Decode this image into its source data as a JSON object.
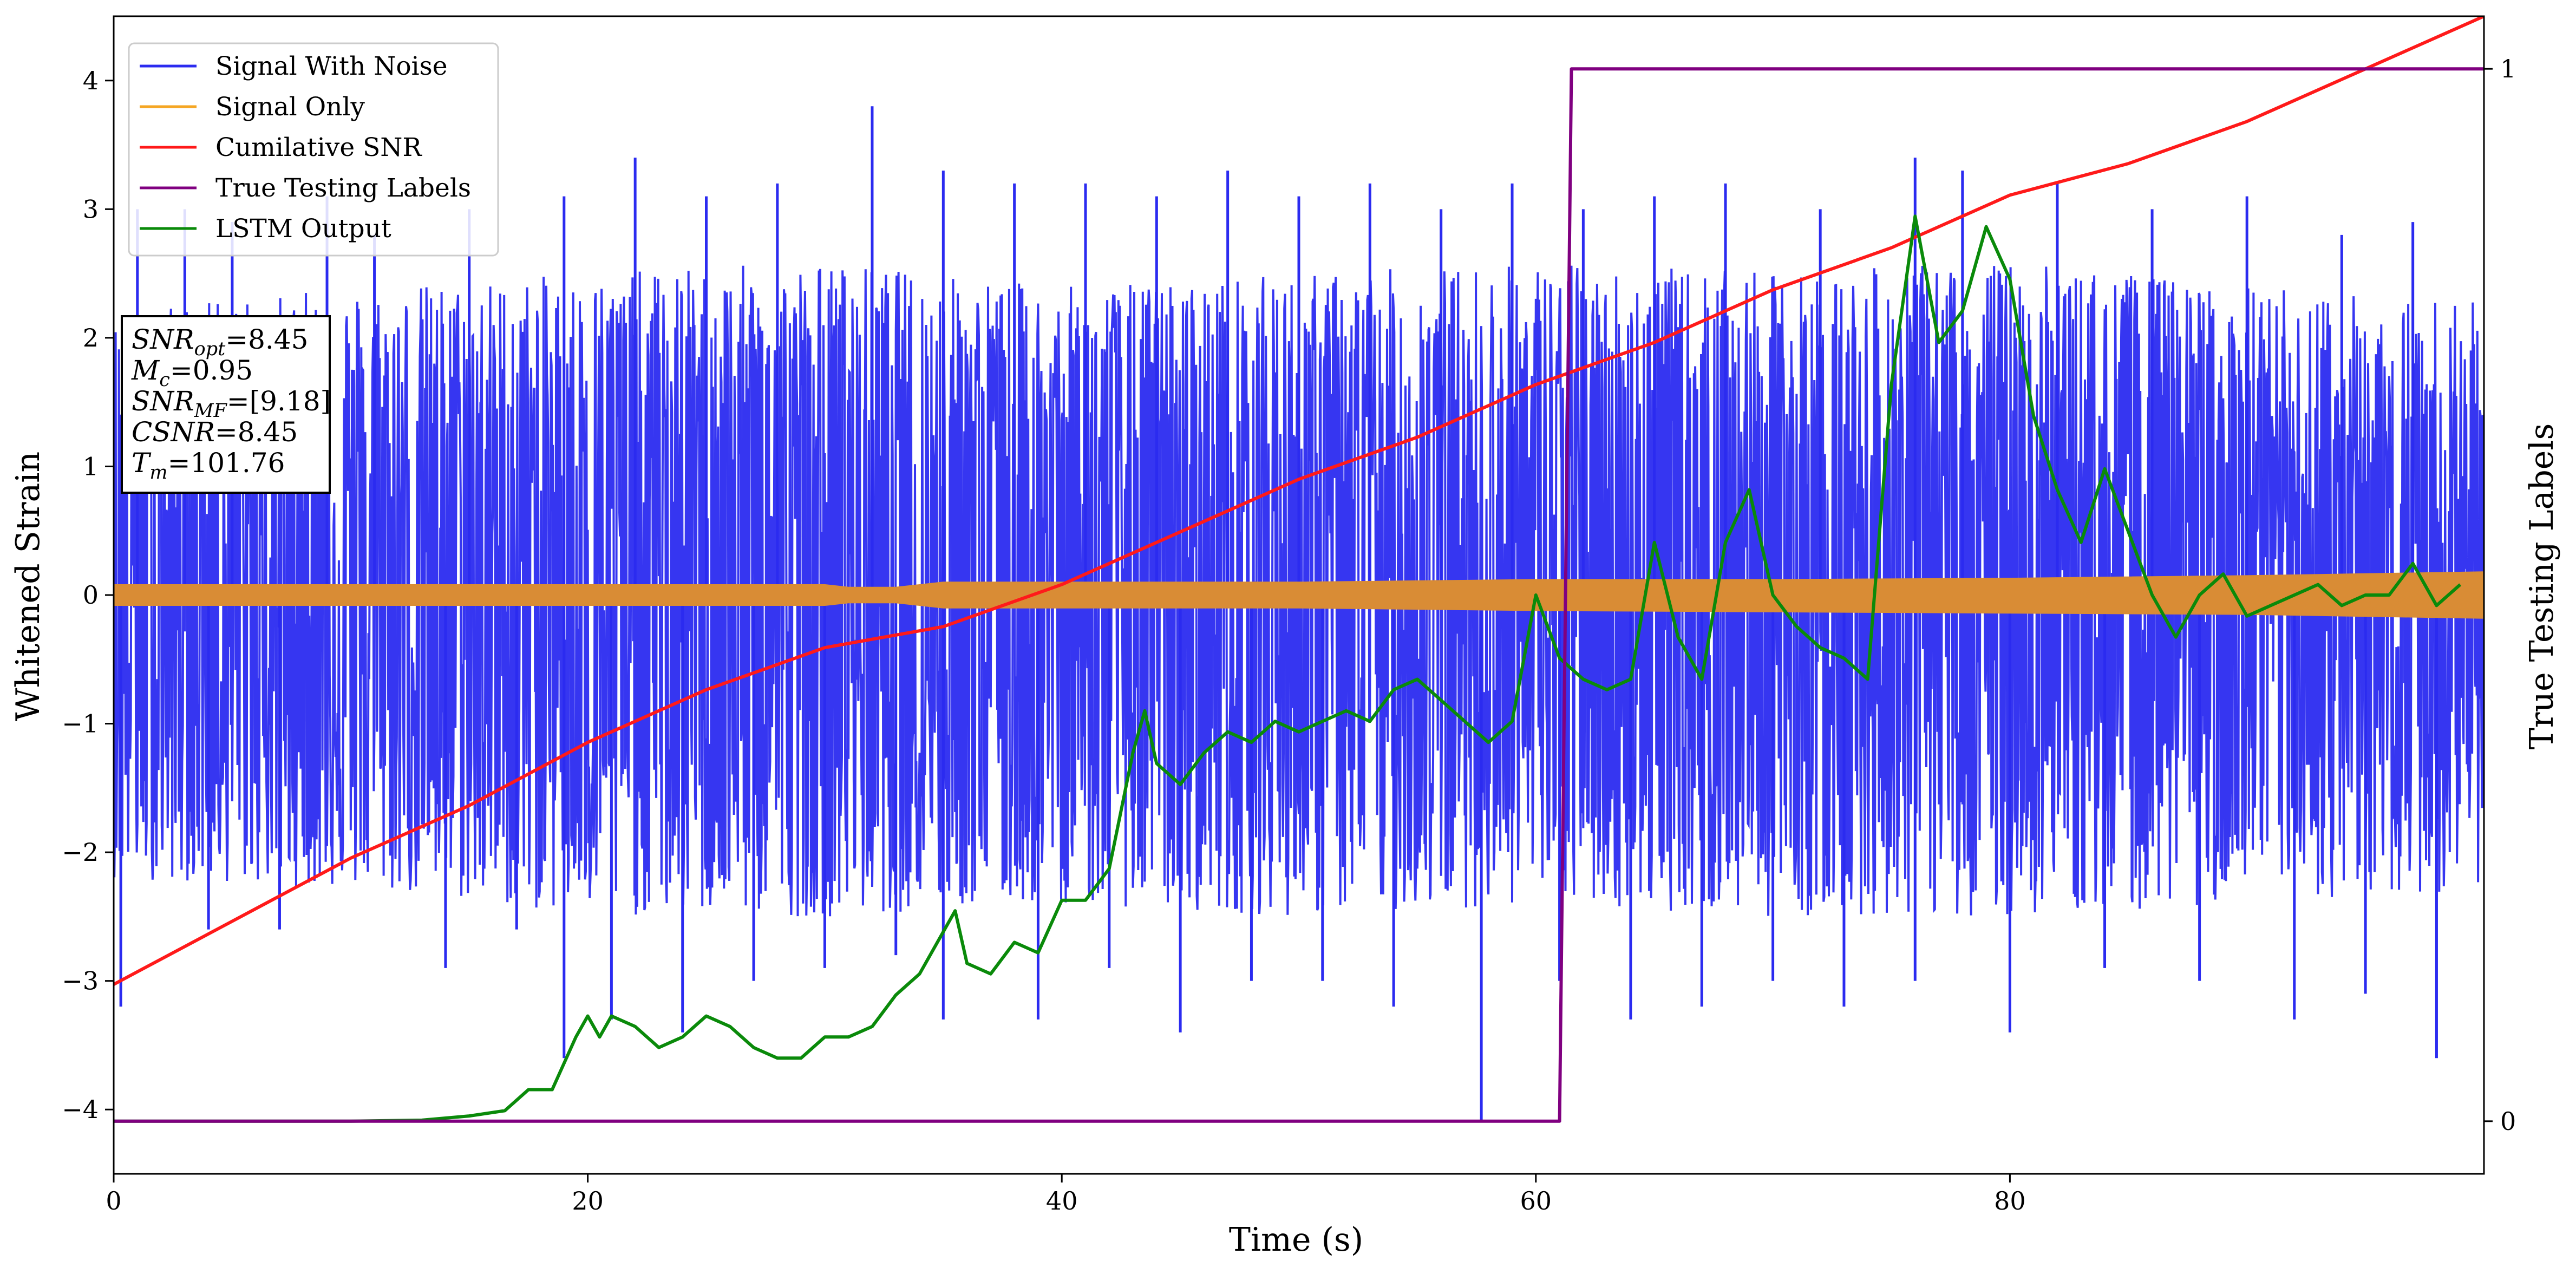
{
  "chart_data": {
    "type": "line",
    "xlabel": "Time (s)",
    "ylabel": "Whitened Strain",
    "y2label": "True Testing Labels",
    "xlim": [
      0,
      100
    ],
    "ylim": [
      -4.5,
      4.5
    ],
    "y2lim": [
      -0.05,
      1.05
    ],
    "xticks": [
      0,
      20,
      40,
      60,
      80
    ],
    "yticks": [
      -4,
      -3,
      -2,
      -1,
      0,
      1,
      2,
      3,
      4
    ],
    "y2ticks": [
      0,
      1
    ],
    "grid": false,
    "legend_position": "top-left",
    "legend": [
      {
        "name": "Signal With Noise",
        "color": "#2b2bf0"
      },
      {
        "name": "Signal Only",
        "color": "#f5a623"
      },
      {
        "name": "Cumilative SNR",
        "color": "#ff1a1a"
      },
      {
        "name": "True Testing Labels",
        "color": "#800080"
      },
      {
        "name": "LSTM Output",
        "color": "#0a8a0a"
      }
    ],
    "annotation": [
      {
        "base": "SNR",
        "sub": "opt",
        "rest": "=8.45"
      },
      {
        "base": "M",
        "sub": "c",
        "rest": "=0.95"
      },
      {
        "base": "SNR",
        "sub": "MF",
        "rest": "=[9.18]"
      },
      {
        "base": "CSNR",
        "sub": "",
        "rest": "=8.45"
      },
      {
        "base": "T",
        "sub": "m",
        "rest": "=101.76"
      }
    ],
    "series": [
      {
        "name": "Signal With Noise",
        "axis": "left",
        "style": "noise-band",
        "x": [
          0,
          10,
          20,
          30,
          40,
          50,
          60,
          70,
          80,
          90,
          100
        ],
        "upper_envelope": [
          2.2,
          2.4,
          2.5,
          2.6,
          2.4,
          2.5,
          2.6,
          2.5,
          2.6,
          2.4,
          2.3
        ],
        "lower_envelope": [
          -2.2,
          -2.3,
          -2.5,
          -2.5,
          -2.4,
          -2.5,
          -2.4,
          -2.5,
          -2.5,
          -2.4,
          -2.3
        ],
        "spikes": [
          {
            "x": 1,
            "y": 3.0
          },
          {
            "x": 3,
            "y": 3.0
          },
          {
            "x": 5,
            "y": 2.9
          },
          {
            "x": 9,
            "y": 3.1
          },
          {
            "x": 11,
            "y": 2.8
          },
          {
            "x": 15,
            "y": 3.0
          },
          {
            "x": 19,
            "y": 3.1
          },
          {
            "x": 22,
            "y": 3.4
          },
          {
            "x": 25,
            "y": 3.1
          },
          {
            "x": 28,
            "y": 3.2
          },
          {
            "x": 32,
            "y": 3.8
          },
          {
            "x": 35,
            "y": 3.3
          },
          {
            "x": 38,
            "y": 3.2
          },
          {
            "x": 41,
            "y": 3.2
          },
          {
            "x": 44,
            "y": 3.1
          },
          {
            "x": 47,
            "y": 3.3
          },
          {
            "x": 50,
            "y": 3.1
          },
          {
            "x": 53,
            "y": 3.2
          },
          {
            "x": 56,
            "y": 3.0
          },
          {
            "x": 59,
            "y": 3.2
          },
          {
            "x": 62,
            "y": 3.0
          },
          {
            "x": 65,
            "y": 3.1
          },
          {
            "x": 68,
            "y": 3.2
          },
          {
            "x": 72,
            "y": 3.0
          },
          {
            "x": 76,
            "y": 3.4
          },
          {
            "x": 78,
            "y": 3.3
          },
          {
            "x": 82,
            "y": 3.2
          },
          {
            "x": 86,
            "y": 3.0
          },
          {
            "x": 90,
            "y": 3.1
          },
          {
            "x": 94,
            "y": 2.8
          },
          {
            "x": 97,
            "y": 2.9
          },
          {
            "x": 0.3,
            "y": -3.2
          },
          {
            "x": 4,
            "y": -2.6
          },
          {
            "x": 7,
            "y": -2.6
          },
          {
            "x": 14,
            "y": -2.9
          },
          {
            "x": 17,
            "y": -2.6
          },
          {
            "x": 19,
            "y": -3.6
          },
          {
            "x": 21,
            "y": -3.3
          },
          {
            "x": 24,
            "y": -3.4
          },
          {
            "x": 27,
            "y": -3.0
          },
          {
            "x": 30,
            "y": -2.9
          },
          {
            "x": 33,
            "y": -2.8
          },
          {
            "x": 35,
            "y": -3.3
          },
          {
            "x": 39,
            "y": -3.3
          },
          {
            "x": 42,
            "y": -2.9
          },
          {
            "x": 45,
            "y": -3.4
          },
          {
            "x": 48,
            "y": -3.0
          },
          {
            "x": 51,
            "y": -3.0
          },
          {
            "x": 54,
            "y": -3.2
          },
          {
            "x": 57.7,
            "y": -4.1
          },
          {
            "x": 61,
            "y": -3.0
          },
          {
            "x": 64,
            "y": -3.3
          },
          {
            "x": 67,
            "y": -3.2
          },
          {
            "x": 70,
            "y": -3.0
          },
          {
            "x": 73,
            "y": -3.2
          },
          {
            "x": 76,
            "y": -3.0
          },
          {
            "x": 80,
            "y": -3.4
          },
          {
            "x": 84,
            "y": -2.9
          },
          {
            "x": 88,
            "y": -3.0
          },
          {
            "x": 92,
            "y": -3.3
          },
          {
            "x": 95,
            "y": -3.1
          },
          {
            "x": 98,
            "y": -3.6
          }
        ]
      },
      {
        "name": "Signal Only",
        "axis": "left",
        "style": "envelope-band",
        "x": [
          0,
          10,
          20,
          30,
          31,
          33,
          35,
          40,
          50,
          60,
          70,
          80,
          90,
          100
        ],
        "upper": [
          0.08,
          0.08,
          0.08,
          0.08,
          0.06,
          0.06,
          0.1,
          0.1,
          0.1,
          0.12,
          0.12,
          0.13,
          0.15,
          0.18
        ],
        "lower": [
          -0.08,
          -0.08,
          -0.08,
          -0.08,
          -0.06,
          -0.06,
          -0.1,
          -0.1,
          -0.1,
          -0.12,
          -0.13,
          -0.14,
          -0.15,
          -0.18
        ]
      },
      {
        "name": "Cumilative SNR",
        "axis": "right",
        "x": [
          0,
          5,
          10,
          15,
          20,
          25,
          30,
          35,
          40,
          45,
          50,
          55,
          60,
          65,
          70,
          75,
          80,
          85,
          90,
          95,
          100
        ],
        "y": [
          0.13,
          0.19,
          0.25,
          0.3,
          0.36,
          0.41,
          0.45,
          0.47,
          0.51,
          0.56,
          0.61,
          0.65,
          0.7,
          0.74,
          0.79,
          0.83,
          0.88,
          0.91,
          0.95,
          1.0,
          1.05
        ]
      },
      {
        "name": "True Testing Labels",
        "axis": "right",
        "x": [
          0,
          61,
          61.5,
          100
        ],
        "y": [
          0,
          0,
          1,
          1
        ]
      },
      {
        "name": "LSTM Output",
        "axis": "right",
        "x": [
          0,
          10,
          13,
          15,
          16.5,
          17.5,
          18.5,
          19.5,
          20,
          20.5,
          21,
          22,
          23,
          24,
          25,
          26,
          27,
          28,
          29,
          30,
          31,
          32,
          33,
          34,
          35,
          35.5,
          36,
          37,
          38,
          39,
          40,
          41,
          42,
          43,
          43.5,
          44,
          45,
          46,
          47,
          48,
          49,
          50,
          51,
          52,
          53,
          54,
          55,
          56,
          57,
          58,
          59,
          60,
          61,
          62,
          63,
          64,
          65,
          66,
          67,
          68,
          69,
          70,
          71,
          72,
          73,
          74,
          75,
          76,
          77,
          78,
          79,
          80,
          81,
          82,
          83,
          84,
          85,
          86,
          87,
          88,
          89,
          90,
          91,
          92,
          93,
          94,
          95,
          96,
          97,
          98,
          99
        ],
        "y": [
          0,
          0,
          0.001,
          0.005,
          0.01,
          0.03,
          0.03,
          0.08,
          0.1,
          0.08,
          0.1,
          0.09,
          0.07,
          0.08,
          0.1,
          0.09,
          0.07,
          0.06,
          0.06,
          0.08,
          0.08,
          0.09,
          0.12,
          0.14,
          0.18,
          0.2,
          0.15,
          0.14,
          0.17,
          0.16,
          0.21,
          0.21,
          0.24,
          0.35,
          0.39,
          0.34,
          0.32,
          0.35,
          0.37,
          0.36,
          0.38,
          0.37,
          0.38,
          0.39,
          0.38,
          0.41,
          0.42,
          0.4,
          0.38,
          0.36,
          0.38,
          0.5,
          0.44,
          0.42,
          0.41,
          0.42,
          0.55,
          0.46,
          0.42,
          0.55,
          0.6,
          0.5,
          0.47,
          0.45,
          0.44,
          0.42,
          0.7,
          0.86,
          0.74,
          0.77,
          0.85,
          0.8,
          0.67,
          0.6,
          0.55,
          0.62,
          0.56,
          0.5,
          0.46,
          0.5,
          0.52,
          0.48,
          0.49,
          0.5,
          0.51,
          0.49,
          0.5,
          0.5,
          0.53,
          0.49,
          0.51
        ]
      }
    ]
  }
}
